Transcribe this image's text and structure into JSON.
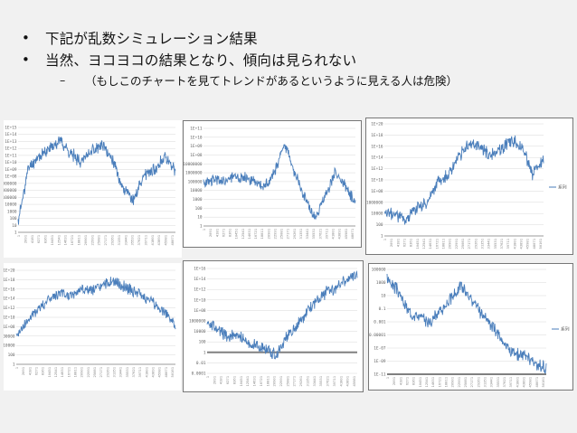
{
  "slide": {
    "bullets": [
      {
        "marker": "•",
        "text": "下記が乱数シミュレーション結果"
      },
      {
        "marker": "•",
        "text": "当然、ヨコヨコの結果となり、傾向は見られない"
      }
    ],
    "sub_bullets": [
      {
        "marker": "–",
        "text": "（もしこのチャートを見てトレンドがあるというように見える人は危険）"
      }
    ]
  },
  "colors": {
    "line": "#4a7ebb",
    "grid": "#d8d8d8",
    "background": "#f1f1f1",
    "baseline": "#808080"
  },
  "chart_data": [
    {
      "type": "line",
      "seed": 11,
      "y_ticks": [
        "1E+15",
        "1E+14",
        "1E+13",
        "1E+12",
        "1E+11",
        "1E+10",
        "1E+09",
        "1E+08",
        "10000000",
        "1000000",
        "100000",
        "10000",
        "1000",
        "100",
        "10",
        "1"
      ],
      "series": [
        {
          "name": "",
          "shape": [
            0.1,
            0.62,
            0.72,
            0.8,
            0.88,
            0.75,
            0.68,
            0.78,
            0.82,
            0.7,
            0.42,
            0.3,
            0.55,
            0.6,
            0.72,
            0.58
          ]
        }
      ]
    },
    {
      "type": "line",
      "seed": 23,
      "y_ticks": [
        "1E+11",
        "1E+10",
        "1E+09",
        "1E+08",
        "10000000",
        "1000000",
        "100000",
        "10000",
        "1000",
        "100",
        "10",
        "1"
      ],
      "series": [
        {
          "name": "",
          "shape": [
            0.42,
            0.48,
            0.45,
            0.52,
            0.5,
            0.45,
            0.4,
            0.55,
            0.85,
            0.55,
            0.3,
            0.08,
            0.3,
            0.55,
            0.4,
            0.25
          ]
        }
      ]
    },
    {
      "type": "line",
      "seed": 37,
      "y_ticks": [
        "1E+20",
        "1E+18",
        "1E+16",
        "1E+14",
        "1E+12",
        "1E+10",
        "1E+08",
        "1000000",
        "10000",
        "100",
        "1"
      ],
      "legend": "−系列",
      "series": [
        {
          "name": "系列",
          "shape": [
            0.18,
            0.2,
            0.15,
            0.25,
            0.3,
            0.48,
            0.55,
            0.7,
            0.82,
            0.8,
            0.72,
            0.78,
            0.85,
            0.8,
            0.55,
            0.68
          ]
        }
      ]
    },
    {
      "type": "line",
      "seed": 41,
      "y_ticks": [
        "1E+20",
        "1E+18",
        "1E+16",
        "1E+14",
        "1E+12",
        "1E+10",
        "1E+08",
        "1000000",
        "10000",
        "100",
        "1"
      ],
      "series": [
        {
          "name": "",
          "shape": [
            0.3,
            0.45,
            0.58,
            0.68,
            0.75,
            0.72,
            0.8,
            0.78,
            0.82,
            0.88,
            0.84,
            0.78,
            0.72,
            0.65,
            0.55,
            0.42
          ]
        }
      ]
    },
    {
      "type": "line",
      "seed": 53,
      "y_ticks": [
        "1E+16",
        "1E+14",
        "1E+12",
        "1E+10",
        "1E+08",
        "1000000",
        "10000",
        "100",
        "1",
        "0.01",
        "0.0001"
      ],
      "baseline_at": "1",
      "series": [
        {
          "name": "",
          "shape": [
            0.5,
            0.42,
            0.35,
            0.38,
            0.28,
            0.26,
            0.22,
            0.18,
            0.35,
            0.45,
            0.6,
            0.7,
            0.78,
            0.82,
            0.9,
            0.95
          ]
        }
      ]
    },
    {
      "type": "line",
      "seed": 67,
      "y_ticks": [
        "100000",
        "1000",
        "10",
        "0.1",
        "0.001",
        "0.00001",
        "1E-07",
        "1E-09",
        "1E-11"
      ],
      "baseline_at": "1",
      "legend": "−系列",
      "series": [
        {
          "name": "系列",
          "shape": [
            0.92,
            0.8,
            0.6,
            0.55,
            0.5,
            0.6,
            0.72,
            0.85,
            0.7,
            0.55,
            0.45,
            0.3,
            0.2,
            0.18,
            0.1,
            0.05
          ]
        }
      ]
    }
  ]
}
